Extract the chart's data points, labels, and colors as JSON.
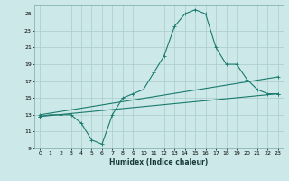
{
  "xlabel": "Humidex (Indice chaleur)",
  "bg_color": "#cce8e8",
  "grid_color": "#aacccc",
  "line_color": "#1a7a6e",
  "xlim": [
    -0.5,
    23.5
  ],
  "ylim": [
    9,
    26
  ],
  "yticks": [
    9,
    11,
    13,
    15,
    17,
    19,
    21,
    23,
    25
  ],
  "xticks": [
    0,
    1,
    2,
    3,
    4,
    5,
    6,
    7,
    8,
    9,
    10,
    11,
    12,
    13,
    14,
    15,
    16,
    17,
    18,
    19,
    20,
    21,
    22,
    23
  ],
  "curve1_x": [
    0,
    1,
    2,
    3,
    4,
    5,
    6,
    7,
    8,
    9,
    10,
    11,
    12,
    13,
    14,
    15,
    16,
    17,
    18,
    19,
    20,
    21,
    22,
    23
  ],
  "curve1_y": [
    12.8,
    13.0,
    13.0,
    13.0,
    12.0,
    10.0,
    9.5,
    13.0,
    15.0,
    15.5,
    16.0,
    18.0,
    20.0,
    23.5,
    25.0,
    25.5,
    25.0,
    21.0,
    19.0,
    19.0,
    17.2,
    16.0,
    15.5,
    15.5
  ],
  "curve2_x": [
    0,
    23
  ],
  "curve2_y": [
    13.0,
    17.5
  ],
  "curve3_x": [
    0,
    23
  ],
  "curve3_y": [
    12.8,
    15.5
  ],
  "marker": "+"
}
